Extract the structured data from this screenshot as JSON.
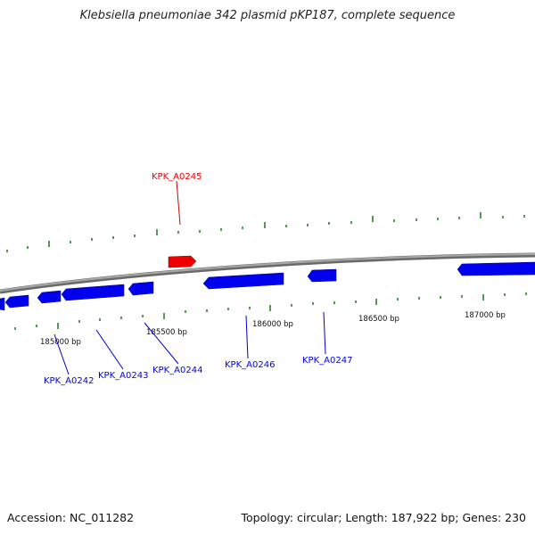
{
  "title": "Klebsiella pneumoniae 342 plasmid pKP187, complete sequence",
  "footer": {
    "accession": "Accession: NC_011282",
    "summary": "Topology: circular; Length: 187,922 bp; Genes: 230"
  },
  "ticks": {
    "labels": [
      "185000 bp",
      "185500 bp",
      "186000 bp",
      "186500 bp",
      "187000 bp"
    ]
  },
  "genes": [
    {
      "name": "KPK_A0242",
      "strand": "reverse",
      "color": "#0000ee"
    },
    {
      "name": "KPK_A0243",
      "strand": "reverse",
      "color": "#0000ee"
    },
    {
      "name": "KPK_A0244",
      "strand": "reverse",
      "color": "#0000ee"
    },
    {
      "name": "KPK_A0245",
      "strand": "forward",
      "color": "#ee0000"
    },
    {
      "name": "KPK_A0246",
      "strand": "reverse",
      "color": "#0000ee"
    },
    {
      "name": "KPK_A0247",
      "strand": "reverse",
      "color": "#0000ee"
    }
  ],
  "colors": {
    "backbone": "#888888",
    "tick": "#1a7a1a",
    "reverse_gene": "#0000ee",
    "forward_gene": "#ee0000"
  }
}
